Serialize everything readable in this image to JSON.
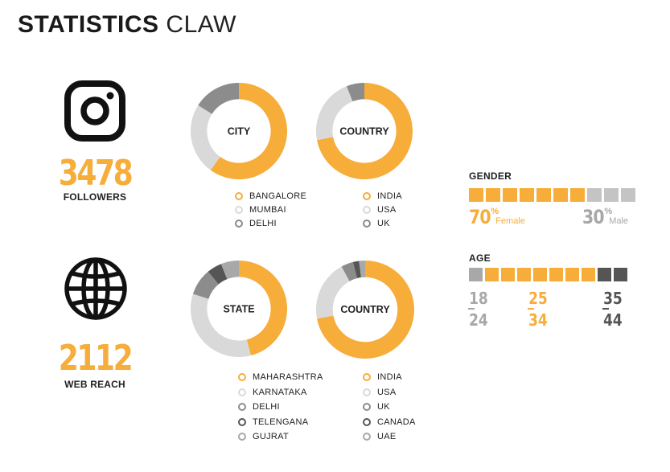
{
  "title": {
    "bold": "STATISTICS",
    "light": "CLAW"
  },
  "colors": {
    "accent": "#f6ad3a",
    "light_gray": "#d9d9d9",
    "mid_gray": "#8c8c8c",
    "dark_gray": "#555555",
    "gray_a": "#a8a8a8",
    "gray_b": "#c4c4c4"
  },
  "instagram": {
    "icon": "instagram-icon",
    "value": "3478",
    "label": "FOLLOWERS"
  },
  "web": {
    "icon": "globe-icon",
    "value": "2112",
    "label": "WEB REACH"
  },
  "chart_data": [
    {
      "type": "pie",
      "title": "CITY",
      "slices": [
        {
          "name": "BANGALORE",
          "value": 60,
          "color": "#f6ad3a"
        },
        {
          "name": "MUMBAI",
          "value": 24,
          "color": "#d9d9d9"
        },
        {
          "name": "DELHI",
          "value": 16,
          "color": "#8c8c8c"
        }
      ]
    },
    {
      "type": "pie",
      "title": "COUNTRY",
      "slices": [
        {
          "name": "INDIA",
          "value": 72,
          "color": "#f6ad3a"
        },
        {
          "name": "USA",
          "value": 22,
          "color": "#d9d9d9"
        },
        {
          "name": "UK",
          "value": 6,
          "color": "#8c8c8c"
        }
      ]
    },
    {
      "type": "pie",
      "title": "STATE",
      "slices": [
        {
          "name": "MAHARASHTRA",
          "value": 46,
          "color": "#f6ad3a"
        },
        {
          "name": "KARNATAKA",
          "value": 34,
          "color": "#d9d9d9"
        },
        {
          "name": "DELHI",
          "value": 9,
          "color": "#8c8c8c"
        },
        {
          "name": "TELENGANA",
          "value": 5,
          "color": "#555555"
        },
        {
          "name": "GUJRAT",
          "value": 6,
          "color": "#a8a8a8"
        }
      ]
    },
    {
      "type": "pie",
      "title": "COUNTRY",
      "slices": [
        {
          "name": "INDIA",
          "value": 72,
          "color": "#f6ad3a"
        },
        {
          "name": "USA",
          "value": 20,
          "color": "#d9d9d9"
        },
        {
          "name": "UK",
          "value": 4,
          "color": "#8c8c8c"
        },
        {
          "name": "CANADA",
          "value": 2,
          "color": "#555555"
        },
        {
          "name": "UAE",
          "value": 2,
          "color": "#a8a8a8"
        }
      ]
    },
    {
      "type": "bar",
      "title": "GENDER",
      "categories": [
        "Female",
        "Male"
      ],
      "values": [
        70,
        30
      ],
      "unit": "%"
    },
    {
      "type": "bar",
      "title": "AGE",
      "categories": [
        "18 24",
        "25 34",
        "35 44"
      ],
      "values": [
        10,
        70,
        20
      ]
    }
  ],
  "gender": {
    "label": "GENDER",
    "female": {
      "value": "70",
      "symbol": "%",
      "word": "Female"
    },
    "male": {
      "value": "30",
      "symbol": "%",
      "word": "Male"
    }
  },
  "age": {
    "label": "AGE",
    "groups": [
      {
        "from": "18",
        "to": "24",
        "color": "#a8a8a8"
      },
      {
        "from": "25",
        "to": "34",
        "color": "#f6ad3a"
      },
      {
        "from": "35",
        "to": "44",
        "color": "#555555"
      }
    ]
  }
}
